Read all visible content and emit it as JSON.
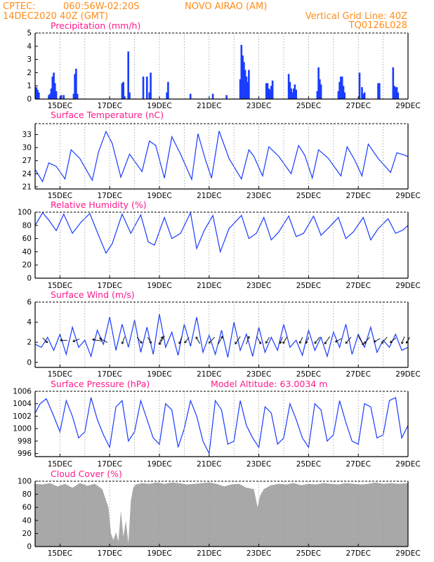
{
  "header": {
    "source": "CPTEC:",
    "coords": "060:56W-02:20S",
    "location": "NOVO AIRAO (AM)",
    "init_time": "14DEC2020 40Z (GMT)",
    "grid_note": "Vertical Grid Line: 40Z",
    "model_code": "TQ0126L028"
  },
  "colors": {
    "header_text": "#ff8c1a",
    "panel_title": "#ff1a8c",
    "series_line": "#1a3cff",
    "cloud_fill": "#a8a8a8",
    "grid": "#9a9a9a"
  },
  "x_axis": {
    "start_day": 14.0,
    "end_day": 29.0,
    "tick_labels": [
      "15DEC",
      "17DEC",
      "19DEC",
      "21DEC",
      "23DEC",
      "25DEC",
      "27DEC",
      "29DEC"
    ]
  },
  "chart_data": [
    {
      "type": "bar",
      "title": "Precipitation (mm/h)",
      "ylim": [
        0,
        5
      ],
      "yticks": [
        0,
        1,
        2,
        3,
        4,
        5
      ],
      "x": [
        14.05,
        14.1,
        14.15,
        14.55,
        14.6,
        14.65,
        14.7,
        14.75,
        14.8,
        14.85,
        15.05,
        15.15,
        15.55,
        15.6,
        15.65,
        15.7,
        17.5,
        17.55,
        17.6,
        17.75,
        17.8,
        18.35,
        18.5,
        18.6,
        18.65,
        19.3,
        19.35,
        20.25,
        21.15,
        21.7,
        22.25,
        22.3,
        22.35,
        22.4,
        22.45,
        22.5,
        22.55,
        22.6,
        23.3,
        23.35,
        23.4,
        23.45,
        23.5,
        23.55,
        24.2,
        24.25,
        24.3,
        24.35,
        24.4,
        24.45,
        24.5,
        25.35,
        25.4,
        25.45,
        25.5,
        26.2,
        26.25,
        26.3,
        26.35,
        26.4,
        26.45,
        27.05,
        27.15,
        27.2,
        27.25,
        27.8,
        27.85,
        28.4,
        28.45,
        28.5,
        28.55,
        28.6
      ],
      "values": [
        0.9,
        0.7,
        0.5,
        0.3,
        0.4,
        0.8,
        1.7,
        2.0,
        1.2,
        0.6,
        0.3,
        0.3,
        0.4,
        1.9,
        2.3,
        0.4,
        1.2,
        1.3,
        0.2,
        3.6,
        0.5,
        1.7,
        1.7,
        0.5,
        2.0,
        0.5,
        1.3,
        0.4,
        0.4,
        0.3,
        1.5,
        4.1,
        3.3,
        2.8,
        2.2,
        1.7,
        1.3,
        2.2,
        1.2,
        1.2,
        0.8,
        0.7,
        1.0,
        1.4,
        1.9,
        1.3,
        0.8,
        0.5,
        0.8,
        1.1,
        0.7,
        0.6,
        2.4,
        1.5,
        1.1,
        0.6,
        1.3,
        1.7,
        1.7,
        1.0,
        0.5,
        2.0,
        0.9,
        0.4,
        0.5,
        1.2,
        1.2,
        2.4,
        1.0,
        0.9,
        0.9,
        0.5
      ]
    },
    {
      "type": "line",
      "title": "Surface Temperature (nC)",
      "ylim": [
        20.5,
        35.5
      ],
      "yticks": [
        21,
        24,
        27,
        30,
        33
      ],
      "x": [
        14.0,
        14.3,
        14.55,
        14.85,
        15.2,
        15.45,
        15.8,
        16.3,
        16.55,
        16.85,
        17.1,
        17.45,
        17.8,
        18.3,
        18.6,
        18.85,
        19.2,
        19.5,
        19.85,
        20.3,
        20.55,
        20.85,
        21.1,
        21.4,
        21.8,
        22.3,
        22.6,
        22.8,
        23.15,
        23.4,
        23.8,
        24.3,
        24.6,
        24.85,
        25.15,
        25.4,
        25.8,
        26.3,
        26.55,
        26.85,
        27.15,
        27.4,
        27.8,
        28.3,
        28.55,
        28.85,
        29.0
      ],
      "values": [
        25.0,
        22.2,
        26.5,
        25.7,
        22.8,
        29.5,
        27.5,
        22.5,
        29.0,
        33.7,
        31.0,
        23.2,
        28.5,
        24.5,
        31.5,
        30.5,
        23.0,
        32.5,
        28.5,
        22.7,
        33.2,
        27.2,
        23.0,
        33.8,
        27.5,
        22.8,
        29.5,
        28.0,
        23.5,
        30.2,
        28.0,
        24.0,
        30.5,
        28.2,
        23.0,
        29.5,
        27.5,
        23.5,
        30.2,
        27.2,
        23.5,
        30.8,
        27.5,
        24.3,
        28.8,
        28.3,
        27.9
      ]
    },
    {
      "type": "line",
      "title": "Relative Humidity (%)",
      "ylim": [
        0,
        100
      ],
      "yticks": [
        0,
        20,
        40,
        60,
        80,
        100
      ],
      "x": [
        14.0,
        14.3,
        14.55,
        14.85,
        15.15,
        15.5,
        15.85,
        16.2,
        16.55,
        16.85,
        17.1,
        17.5,
        17.85,
        18.25,
        18.55,
        18.8,
        19.2,
        19.5,
        19.85,
        20.25,
        20.5,
        20.8,
        21.15,
        21.45,
        21.8,
        22.3,
        22.6,
        22.9,
        23.2,
        23.5,
        23.8,
        24.2,
        24.5,
        24.8,
        25.2,
        25.5,
        25.85,
        26.2,
        26.5,
        26.8,
        27.2,
        27.5,
        27.8,
        28.2,
        28.5,
        28.8,
        29.0
      ],
      "values": [
        80,
        99,
        88,
        72,
        97,
        68,
        85,
        98,
        65,
        38,
        52,
        97,
        68,
        96,
        55,
        50,
        92,
        60,
        68,
        99,
        45,
        72,
        95,
        40,
        75,
        95,
        60,
        68,
        92,
        58,
        70,
        94,
        63,
        68,
        94,
        65,
        78,
        92,
        60,
        70,
        92,
        58,
        75,
        90,
        68,
        73,
        80
      ]
    },
    {
      "type": "line",
      "title": "Surface Wind (m/s)",
      "ylim": [
        -0.5,
        6
      ],
      "yticks": [
        0,
        2,
        4,
        6
      ],
      "x": [
        14.0,
        14.25,
        14.5,
        14.75,
        15.0,
        15.25,
        15.5,
        15.75,
        16.0,
        16.25,
        16.5,
        16.75,
        17.0,
        17.25,
        17.5,
        17.75,
        18.0,
        18.25,
        18.5,
        18.75,
        19.0,
        19.25,
        19.5,
        19.75,
        20.0,
        20.25,
        20.5,
        20.75,
        21.0,
        21.25,
        21.5,
        21.75,
        22.0,
        22.25,
        22.5,
        22.75,
        23.0,
        23.25,
        23.5,
        23.75,
        24.0,
        24.25,
        24.5,
        24.75,
        25.0,
        25.25,
        25.5,
        25.75,
        26.0,
        26.25,
        26.5,
        26.75,
        27.0,
        27.25,
        27.5,
        27.75,
        28.0,
        28.25,
        28.5,
        28.75,
        29.0
      ],
      "values": [
        1.8,
        1.5,
        2.5,
        1.2,
        2.8,
        0.8,
        3.5,
        1.5,
        2.2,
        0.6,
        3.2,
        1.8,
        4.5,
        1.2,
        3.8,
        1.5,
        4.2,
        1.0,
        3.5,
        0.8,
        4.8,
        1.5,
        3.0,
        0.7,
        3.8,
        1.6,
        4.5,
        1.0,
        2.7,
        0.8,
        3.2,
        0.5,
        4.0,
        1.2,
        2.8,
        0.6,
        3.5,
        1.0,
        2.5,
        1.2,
        3.8,
        1.5,
        2.2,
        0.7,
        3.2,
        1.2,
        2.5,
        0.6,
        3.0,
        1.5,
        3.8,
        0.8,
        2.8,
        1.5,
        3.5,
        1.0,
        2.2,
        1.5,
        2.8,
        1.2,
        1.5
      ],
      "arrows": {
        "x": [
          14.4,
          15.15,
          15.65,
          16.5,
          16.75,
          17.55,
          18.2,
          18.6,
          19.05,
          19.1,
          19.85,
          20.1,
          20.55,
          21.1,
          21.45,
          22.15,
          22.55,
          23.0,
          23.35,
          23.9,
          24.05,
          24.7,
          24.95,
          25.35,
          25.75,
          26.2,
          26.6,
          27.1,
          27.35,
          27.75,
          28.05,
          28.4,
          28.8,
          29.0
        ],
        "dir_deg": [
          315,
          180,
          200,
          170,
          150,
          250,
          310,
          300,
          60,
          240,
          250,
          230,
          120,
          225,
          60,
          235,
          70,
          300,
          240,
          250,
          240,
          245,
          245,
          230,
          235,
          210,
          230,
          300,
          230,
          210,
          230,
          220,
          250,
          240
        ],
        "len": [
          1.0,
          1.0,
          1.0,
          1.4,
          1.3,
          1.1,
          1.1,
          1.0,
          1.2,
          1.5,
          1.1,
          1.0,
          1.1,
          1.2,
          1.3,
          1.3,
          1.2,
          1.2,
          1.0,
          1.0,
          1.1,
          1.0,
          1.0,
          1.2,
          1.3,
          1.0,
          1.2,
          1.6,
          1.2,
          1.0,
          1.2,
          1.1,
          1.1,
          1.0
        ]
      }
    },
    {
      "type": "line",
      "title": "Surface Pressure (hPa)",
      "annotation": "Model Altitude: 63.0034 m",
      "ylim": [
        995.5,
        1006
      ],
      "yticks": [
        996,
        998,
        1000,
        1002,
        1004,
        1006
      ],
      "x": [
        14.0,
        14.2,
        14.45,
        14.7,
        15.0,
        15.25,
        15.5,
        15.75,
        16.0,
        16.25,
        16.5,
        16.75,
        17.0,
        17.25,
        17.5,
        17.75,
        18.0,
        18.25,
        18.5,
        18.75,
        19.0,
        19.25,
        19.5,
        19.75,
        20.0,
        20.25,
        20.5,
        20.75,
        21.0,
        21.25,
        21.5,
        21.75,
        22.0,
        22.25,
        22.5,
        22.75,
        23.0,
        23.25,
        23.5,
        23.75,
        24.0,
        24.25,
        24.5,
        24.75,
        25.0,
        25.25,
        25.5,
        25.75,
        26.0,
        26.25,
        26.5,
        26.75,
        27.0,
        27.25,
        27.5,
        27.75,
        28.0,
        28.25,
        28.5,
        28.75,
        29.0
      ],
      "values": [
        1002.5,
        1004.0,
        1004.8,
        1002.5,
        999.5,
        1004.5,
        1002.0,
        998.5,
        999.5,
        1005.0,
        1001.5,
        999.0,
        997.0,
        1003.5,
        1004.5,
        998.0,
        999.5,
        1004.5,
        1001.5,
        998.5,
        997.5,
        1004.0,
        1003.0,
        997.0,
        1000.0,
        1004.5,
        1002.0,
        998.0,
        996.0,
        1004.5,
        1003.0,
        997.5,
        998.0,
        1004.5,
        1000.5,
        998.5,
        997.0,
        1003.5,
        1002.5,
        997.5,
        998.5,
        1004.0,
        1001.5,
        998.5,
        997.0,
        1004.0,
        1003.0,
        998.0,
        999.0,
        1004.5,
        1001.0,
        998.0,
        997.5,
        1004.0,
        1003.5,
        998.5,
        999.0,
        1004.5,
        1005.0,
        998.5,
        1000.5
      ]
    },
    {
      "type": "area",
      "title": "Cloud Cover (%)",
      "ylim": [
        0,
        100
      ],
      "yticks": [
        0,
        20,
        40,
        60,
        80,
        100
      ],
      "x": [
        14.0,
        14.3,
        14.6,
        14.9,
        15.2,
        15.5,
        15.8,
        16.1,
        16.4,
        16.7,
        16.95,
        17.05,
        17.15,
        17.25,
        17.35,
        17.45,
        17.55,
        17.65,
        17.75,
        17.85,
        17.95,
        18.05,
        18.3,
        18.6,
        18.9,
        19.2,
        19.5,
        19.8,
        20.1,
        20.4,
        20.7,
        21.0,
        21.3,
        21.6,
        21.9,
        22.2,
        22.5,
        22.8,
        22.95,
        23.05,
        23.2,
        23.5,
        23.8,
        24.1,
        24.4,
        24.7,
        25.0,
        25.3,
        25.6,
        25.9,
        26.2,
        26.5,
        26.8,
        27.1,
        27.4,
        27.7,
        28.0,
        28.3,
        28.6,
        29.0
      ],
      "values": [
        96,
        95,
        97,
        92,
        96,
        90,
        97,
        93,
        96,
        88,
        60,
        20,
        10,
        22,
        8,
        55,
        15,
        40,
        5,
        70,
        90,
        95,
        97,
        96,
        98,
        96,
        98,
        97,
        95,
        96,
        97,
        98,
        96,
        92,
        95,
        96,
        90,
        88,
        60,
        78,
        88,
        94,
        96,
        95,
        97,
        94,
        96,
        95,
        97,
        96,
        95,
        97,
        96,
        95,
        96,
        98,
        96,
        97,
        96,
        97
      ]
    }
  ]
}
